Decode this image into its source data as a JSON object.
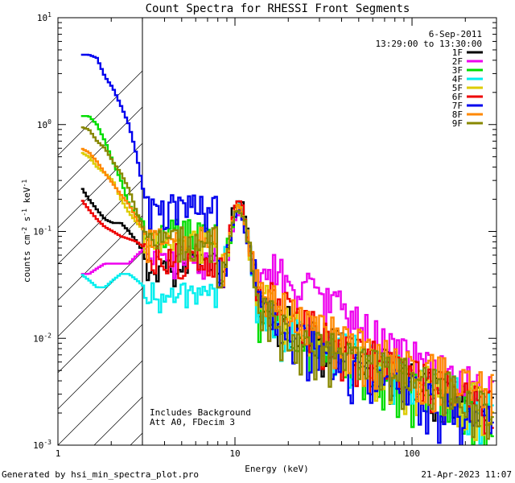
{
  "chart_data": {
    "type": "line",
    "title": "Count Spectra for RHESSI Front Segments",
    "xlabel": "Energy (keV)",
    "ylabel": {
      "base": "counts cm",
      "sup1": "-2",
      "mid": " s",
      "sup2": "-1",
      "tail": " keV",
      "sup3": "-1"
    },
    "x_scale": "log",
    "y_scale": "log",
    "xlim": [
      1,
      300
    ],
    "ylim": [
      0.001,
      10
    ],
    "x_ticks": [
      {
        "value": 1,
        "label": "1"
      },
      {
        "value": 10,
        "label": "10"
      },
      {
        "value": 100,
        "label": "100"
      }
    ],
    "y_ticks": [
      {
        "value": 0.001,
        "base": "10",
        "exp": "-3"
      },
      {
        "value": 0.01,
        "base": "10",
        "exp": "-2"
      },
      {
        "value": 0.1,
        "base": "10",
        "exp": "-1"
      },
      {
        "value": 1,
        "base": "10",
        "exp": "0"
      },
      {
        "value": 10,
        "base": "10",
        "exp": "1"
      }
    ],
    "excluded_region": {
      "from": 1,
      "to": 3
    },
    "date": "6-Sep-2011",
    "time_range": "13:29:00 to 13:30:00",
    "annotations": [
      "Includes Background",
      "Att A0, FDecim 3"
    ],
    "series": [
      {
        "name": "1F",
        "color": "#000000",
        "low": [
          0.26,
          0.2,
          0.16,
          0.13,
          0.12,
          0.12,
          0.1,
          0.08,
          0.06
        ],
        "peak": 0.17,
        "tail": [
          0.02,
          0.012,
          0.008,
          0.006,
          0.004,
          0.003,
          0.002
        ]
      },
      {
        "name": "2F",
        "color": "#ee00ee",
        "low": [
          0.04,
          0.04,
          0.045,
          0.05,
          0.05,
          0.05,
          0.05,
          0.06,
          0.07
        ],
        "peak": 0.12,
        "tail": [
          0.05,
          0.03,
          0.02,
          0.01,
          0.006,
          0.004,
          0.003
        ]
      },
      {
        "name": "3F",
        "color": "#00dd00",
        "low": [
          1.2,
          1.2,
          1.0,
          0.7,
          0.45,
          0.3,
          0.18,
          0.14,
          0.12
        ],
        "peak": 0.13,
        "tail": [
          0.02,
          0.01,
          0.007,
          0.005,
          0.003,
          0.002,
          0.0015
        ]
      },
      {
        "name": "4F",
        "color": "#00eeee",
        "low": [
          0.04,
          0.035,
          0.03,
          0.03,
          0.035,
          0.04,
          0.04,
          0.035,
          0.03
        ],
        "peak": 0.15,
        "tail": [
          0.02,
          0.01,
          0.008,
          0.006,
          0.004,
          0.003,
          0.002
        ]
      },
      {
        "name": "5F",
        "color": "#ddcc00",
        "low": [
          0.55,
          0.5,
          0.4,
          0.35,
          0.3,
          0.2,
          0.15,
          0.12,
          0.1
        ],
        "peak": 0.14,
        "tail": [
          0.025,
          0.012,
          0.008,
          0.005,
          0.004,
          0.003,
          0.002
        ]
      },
      {
        "name": "6F",
        "color": "#ee0000",
        "low": [
          0.2,
          0.16,
          0.13,
          0.11,
          0.1,
          0.09,
          0.085,
          0.08,
          0.07
        ],
        "peak": 0.16,
        "tail": [
          0.03,
          0.015,
          0.009,
          0.006,
          0.004,
          0.003,
          0.002
        ]
      },
      {
        "name": "7F",
        "color": "#0000ee",
        "low": [
          4.5,
          4.5,
          4.2,
          2.8,
          2.2,
          1.5,
          1.0,
          0.5,
          0.2
        ],
        "peak": 0.12,
        "tail": [
          0.02,
          0.01,
          0.006,
          0.004,
          0.003,
          0.002,
          0.0015
        ]
      },
      {
        "name": "8F",
        "color": "#ff8800",
        "low": [
          0.6,
          0.55,
          0.45,
          0.35,
          0.28,
          0.22,
          0.18,
          0.13,
          0.1
        ],
        "peak": 0.14,
        "tail": [
          0.03,
          0.015,
          0.01,
          0.007,
          0.005,
          0.004,
          0.003
        ]
      },
      {
        "name": "9F",
        "color": "#888800",
        "low": [
          0.95,
          0.9,
          0.7,
          0.6,
          0.45,
          0.35,
          0.25,
          0.15,
          0.1
        ],
        "peak": 0.13,
        "tail": [
          0.02,
          0.01,
          0.007,
          0.005,
          0.004,
          0.003,
          0.002
        ]
      }
    ]
  },
  "footer": {
    "generated_by": "Generated by hsi_min_spectra_plot.pro",
    "timestamp": "21-Apr-2023 11:07"
  }
}
